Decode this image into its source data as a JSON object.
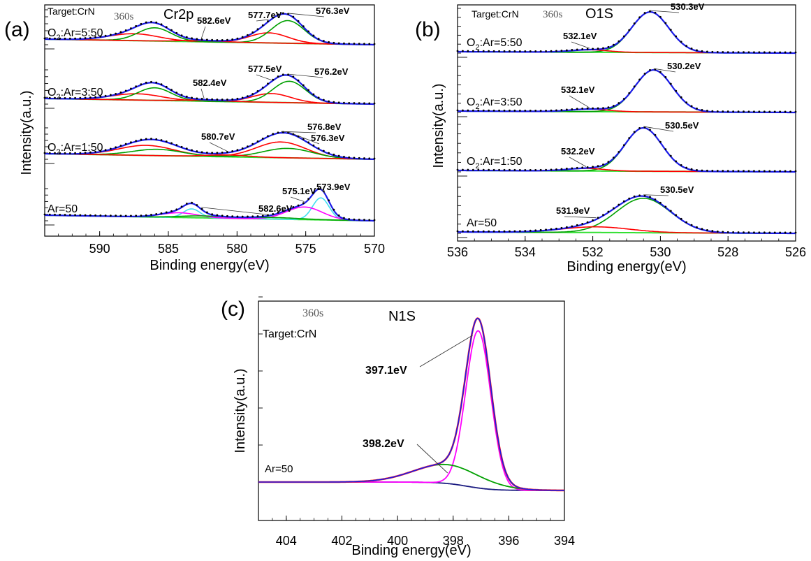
{
  "chart_data": [
    {
      "panel": "(a)",
      "type": "line",
      "title": "Cr2p",
      "annotations": [
        "Target:CrN",
        "360s"
      ],
      "xlabel": "Binding energy(eV)",
      "ylabel": "Intensity(a.u.)",
      "xlim": [
        594,
        570
      ],
      "xticks": [
        590,
        585,
        580,
        575,
        570
      ],
      "spectra": [
        {
          "sample": "O2:Ar=5:50",
          "sample_main": "O",
          "sample_sub": "2",
          "sample_rest": ":Ar=5:50",
          "labels": [
            "582.6eV",
            "577.7eV",
            "576.3eV"
          ],
          "components": [
            {
              "color": "#ff0000",
              "peaks": [
                [
                  577.7,
                  0.32,
                  1.4
                ],
                [
                  587.5,
                  0.22,
                  1.8
                ]
              ]
            },
            {
              "color": "#00a000",
              "peaks": [
                [
                  576.3,
                  0.72,
                  1.2
                ],
                [
                  586.0,
                  0.42,
                  1.2
                ]
              ]
            },
            {
              "color": "#ff0000",
              "peaks": [
                [
                  582.6,
                  0.04,
                  1.5
                ]
              ]
            }
          ]
        },
        {
          "sample": "O2:Ar=3:50",
          "sample_main": "O",
          "sample_sub": "2",
          "sample_rest": ":Ar=3:50",
          "labels": [
            "582.4eV",
            "577.5eV",
            "576.2eV"
          ],
          "components": [
            {
              "color": "#ff0000",
              "peaks": [
                [
                  577.5,
                  0.28,
                  1.4
                ],
                [
                  587.3,
                  0.2,
                  1.8
                ]
              ]
            },
            {
              "color": "#00a000",
              "peaks": [
                [
                  576.2,
                  0.68,
                  1.2
                ],
                [
                  586.0,
                  0.4,
                  1.2
                ]
              ]
            },
            {
              "color": "#ff0000",
              "peaks": [
                [
                  582.4,
                  0.04,
                  1.5
                ]
              ]
            }
          ]
        },
        {
          "sample": "O2:Ar=1:50",
          "sample_main": "O",
          "sample_sub": "2",
          "sample_rest": ":Ar=1:50",
          "labels": [
            "580.7eV",
            "576.8eV",
            "576.3eV"
          ],
          "components": [
            {
              "color": "#ff0000",
              "peaks": [
                [
                  576.8,
                  0.5,
                  1.8
                ],
                [
                  586.6,
                  0.32,
                  2.0
                ]
              ]
            },
            {
              "color": "#00a000",
              "peaks": [
                [
                  576.3,
                  0.3,
                  1.8
                ],
                [
                  585.8,
                  0.2,
                  1.8
                ]
              ]
            },
            {
              "color": "#ff0000",
              "peaks": [
                [
                  580.7,
                  0.06,
                  1.5
                ]
              ]
            }
          ]
        },
        {
          "sample": "Ar=50",
          "sample_main": "",
          "sample_sub": "",
          "sample_rest": "Ar=50",
          "labels": [
            "582.6eV",
            "575.1eV",
            "573.9eV"
          ],
          "components": [
            {
              "color": "#40e0f0",
              "peaks": [
                [
                  573.9,
                  0.7,
                  0.6
                ],
                [
                  583.3,
                  0.28,
                  0.6
                ]
              ]
            },
            {
              "color": "#ff00ff",
              "peaks": [
                [
                  575.1,
                  0.4,
                  1.3
                ],
                [
                  584.2,
                  0.15,
                  1.3
                ]
              ]
            },
            {
              "color": "#00a000",
              "peaks": [
                [
                  582.6,
                  0.06,
                  1.6
                ],
                [
                  577.5,
                  0.05,
                  2.0
                ]
              ]
            }
          ]
        }
      ]
    },
    {
      "panel": "(b)",
      "type": "line",
      "title": "O1S",
      "annotations": [
        "Target:CrN",
        "360s"
      ],
      "xlabel": "Binding energy(eV)",
      "ylabel": "Intensity(a.u.)",
      "xlim": [
        536,
        526
      ],
      "xticks": [
        536,
        534,
        532,
        530,
        528,
        526
      ],
      "spectra": [
        {
          "sample": "O2:Ar=5:50",
          "sample_main": "O",
          "sample_sub": "2",
          "sample_rest": ":Ar=5:50",
          "labels": [
            "532.1eV",
            "530.3eV"
          ],
          "components": [
            {
              "color": "#00a000",
              "peaks": [
                [
                  530.3,
                  1.0,
                  0.55
                ]
              ]
            },
            {
              "color": "#ff0000",
              "peaks": [
                [
                  532.1,
                  0.06,
                  0.55
                ]
              ]
            }
          ]
        },
        {
          "sample": "O2:Ar=3:50",
          "sample_main": "O",
          "sample_sub": "2",
          "sample_rest": ":Ar=3:50",
          "labels": [
            "532.1eV",
            "530.2eV"
          ],
          "components": [
            {
              "color": "#00a000",
              "peaks": [
                [
                  530.2,
                  1.0,
                  0.55
                ]
              ]
            },
            {
              "color": "#ff0000",
              "peaks": [
                [
                  532.1,
                  0.06,
                  0.55
                ]
              ]
            }
          ]
        },
        {
          "sample": "O2:Ar=1:50",
          "sample_main": "O",
          "sample_sub": "2",
          "sample_rest": ":Ar=1:50",
          "labels": [
            "532.2eV",
            "530.5eV"
          ],
          "components": [
            {
              "color": "#00a000",
              "peaks": [
                [
                  530.5,
                  1.0,
                  0.55
                ]
              ]
            },
            {
              "color": "#ff0000",
              "peaks": [
                [
                  532.2,
                  0.06,
                  0.55
                ]
              ]
            }
          ]
        },
        {
          "sample": "Ar=50",
          "sample_main": "",
          "sample_sub": "",
          "sample_rest": "Ar=50",
          "labels": [
            "531.9eV",
            "530.5eV"
          ],
          "components": [
            {
              "color": "#00a000",
              "peaks": [
                [
                  530.5,
                  0.85,
                  0.8
                ]
              ]
            },
            {
              "color": "#ff0000",
              "peaks": [
                [
                  531.9,
                  0.14,
                  1.0
                ]
              ]
            }
          ]
        }
      ]
    },
    {
      "panel": "(c)",
      "type": "line",
      "title": "N1S",
      "annotations": [
        "Target:CrN",
        "360s",
        "Ar=50"
      ],
      "xlabel": "Binding energy(eV)",
      "ylabel": "Intensity(a.u.)",
      "xlim": [
        405,
        394
      ],
      "xticks": [
        404,
        402,
        400,
        398,
        396,
        394
      ],
      "labels": [
        "397.1eV",
        "398.2eV"
      ],
      "components": [
        {
          "color": "#ff00ff",
          "peaks": [
            [
              397.1,
              1.0,
              0.45
            ]
          ]
        },
        {
          "color": "#00a000",
          "peaks": [
            [
              398.2,
              0.12,
              1.2
            ]
          ]
        }
      ]
    }
  ]
}
